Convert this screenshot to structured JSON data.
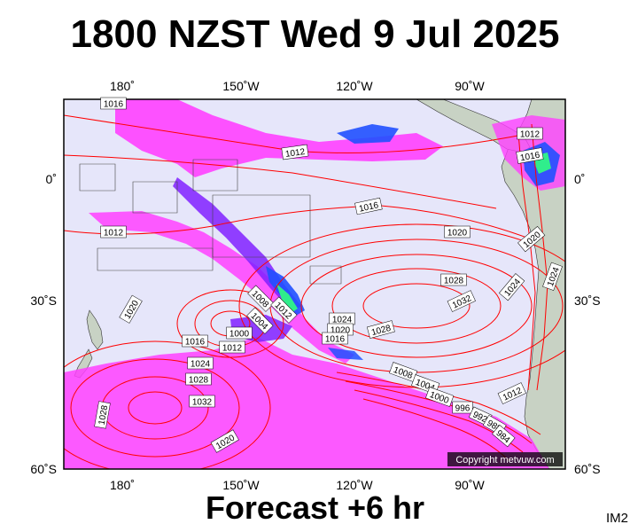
{
  "title": "1800 NZST Wed 9 Jul 2025",
  "subtitle": "Forecast +6 hr",
  "image_id": "IM2",
  "copyright": "Copyright metvuw.com",
  "lon_labels": [
    "180˚",
    "150˚W",
    "120˚W",
    "90˚W"
  ],
  "lat_labels": [
    "0˚",
    "30˚S",
    "60˚S"
  ],
  "isobar_labels": [
    "1016",
    "1012",
    "1016",
    "1012",
    "1016",
    "1020",
    "1020",
    "1024",
    "1012",
    "1020",
    "1028",
    "1024",
    "1032",
    "1008",
    "1012",
    "1004",
    "1000",
    "1024",
    "1020",
    "1016",
    "1028",
    "1016",
    "1012",
    "1024",
    "1028",
    "1032",
    "1008",
    "1004",
    "1000",
    "996",
    "992",
    "988",
    "984",
    "1012",
    "1028",
    "1020"
  ],
  "colors": {
    "ocean": "#e6e6fa",
    "land": "#c8d2c4",
    "isobar": "#ff0000",
    "rain_light": "#ff40ff",
    "rain_moderate": "#8020ff",
    "rain_heavy": "#2050ff",
    "rain_intense": "#30ff80"
  }
}
